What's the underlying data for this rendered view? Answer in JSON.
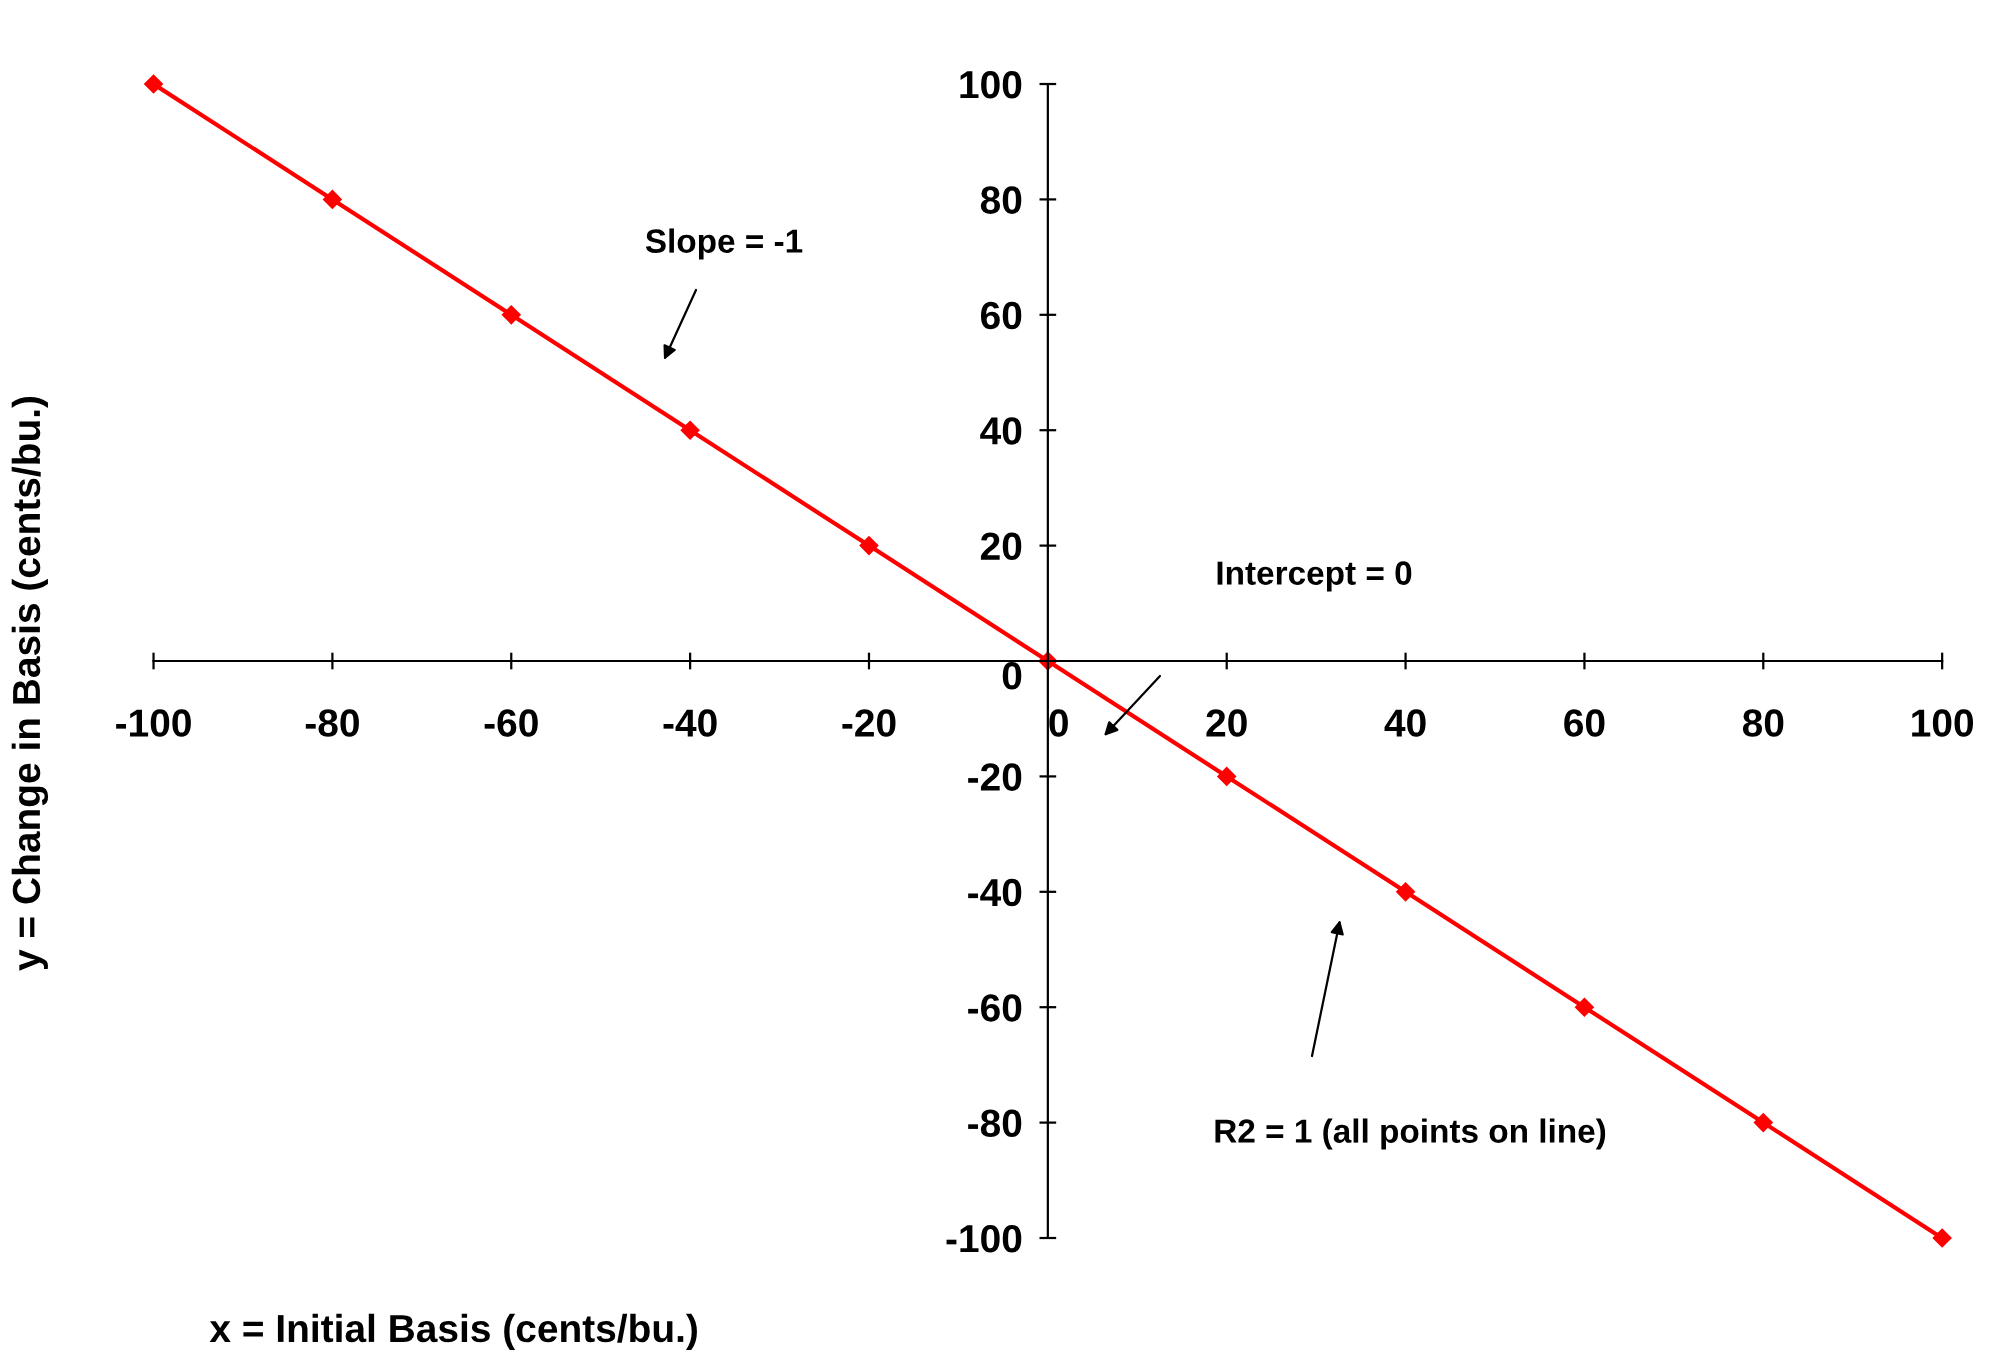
{
  "chart_data": {
    "type": "line",
    "xlabel": "x = Initial Basis (cents/bu.)",
    "ylabel": "y = Change in Basis (cents/bu.)",
    "x": [
      -100,
      -80,
      -60,
      -40,
      -20,
      0,
      20,
      40,
      60,
      80,
      100
    ],
    "series": [
      {
        "color": "#ff0000",
        "values": [
          100,
          80,
          60,
          40,
          20,
          0,
          -20,
          -40,
          -60,
          -80,
          -100
        ]
      }
    ],
    "xlim": [
      -100,
      100
    ],
    "ylim": [
      -100,
      100
    ],
    "xticks": [
      -100,
      -80,
      -60,
      -40,
      -20,
      0,
      20,
      40,
      60,
      80,
      100
    ],
    "yticks": [
      -100,
      -80,
      -60,
      -40,
      -20,
      0,
      20,
      40,
      60,
      80,
      100
    ],
    "marker": "diamond",
    "line_style": "solid",
    "grid": false,
    "legend": false,
    "annotations": [
      "Slope = -1",
      "Intercept = 0",
      "R2 = 1 (all points on line)"
    ]
  }
}
